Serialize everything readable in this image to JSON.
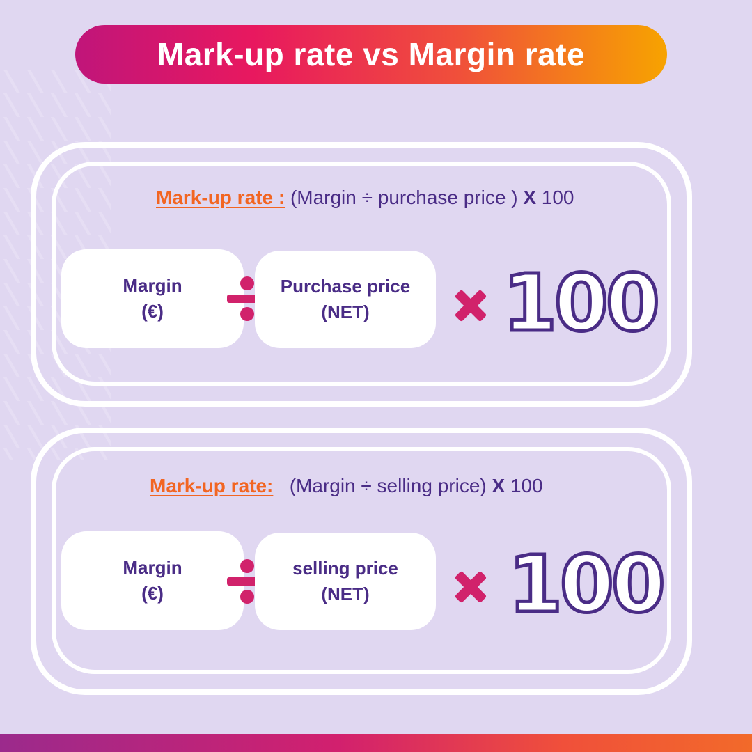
{
  "title": "Mark-up rate vs Margin rate",
  "panels": [
    {
      "formula_label": "Mark-up rate :",
      "formula_expression": "(Margin ÷ purchase price )",
      "formula_times": "X",
      "formula_multiplier": "100",
      "left_card": {
        "line1": "Margin",
        "line2": "(€)"
      },
      "right_card": {
        "line1": "Purchase price",
        "line2": "(NET)"
      },
      "big_number": "100"
    },
    {
      "formula_label": "Mark-up rate:",
      "formula_expression": "(Margin ÷ selling price)",
      "formula_times": "X",
      "formula_multiplier": "100",
      "left_card": {
        "line1": "Margin",
        "line2": "(€)"
      },
      "right_card": {
        "line1": "selling price",
        "line2": "(NET)"
      },
      "big_number": "100"
    }
  ],
  "colors": {
    "background": "#e0d7f1",
    "accent_orange": "#f26522",
    "accent_pink": "#d1226b",
    "text_purple": "#4a2c86"
  },
  "icons": [
    "divide-icon",
    "times-icon"
  ]
}
